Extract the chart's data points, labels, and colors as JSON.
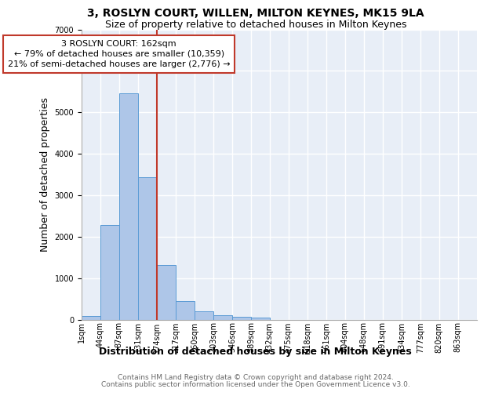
{
  "title": "3, ROSLYN COURT, WILLEN, MILTON KEYNES, MK15 9LA",
  "subtitle": "Size of property relative to detached houses in Milton Keynes",
  "xlabel": "Distribution of detached houses by size in Milton Keynes",
  "ylabel": "Number of detached properties",
  "footnote1": "Contains HM Land Registry data © Crown copyright and database right 2024.",
  "footnote2": "Contains public sector information licensed under the Open Government Licence v3.0.",
  "bar_labels": [
    "1sqm",
    "44sqm",
    "87sqm",
    "131sqm",
    "174sqm",
    "217sqm",
    "260sqm",
    "303sqm",
    "346sqm",
    "389sqm",
    "432sqm",
    "475sqm",
    "518sqm",
    "561sqm",
    "604sqm",
    "648sqm",
    "691sqm",
    "734sqm",
    "777sqm",
    "820sqm",
    "863sqm"
  ],
  "bar_values": [
    80,
    2280,
    5450,
    3430,
    1310,
    450,
    190,
    100,
    65,
    40,
    0,
    0,
    0,
    0,
    0,
    0,
    0,
    0,
    0,
    0,
    0
  ],
  "bar_color": "#aec6e8",
  "bar_edge_color": "#5b9bd5",
  "pct_smaller": 79,
  "n_smaller": "10,359",
  "pct_larger": 21,
  "n_larger": "2,776",
  "vline_x": 4.0,
  "vline_color": "#c0392b",
  "annotation_box_color": "#c0392b",
  "ylim": [
    0,
    7000
  ],
  "yticks": [
    0,
    1000,
    2000,
    3000,
    4000,
    5000,
    6000,
    7000
  ],
  "background_color": "#e8eef7",
  "grid_color": "#ffffff",
  "title_fontsize": 10,
  "subtitle_fontsize": 9,
  "axis_label_fontsize": 9,
  "tick_fontsize": 7,
  "annotation_fontsize": 8,
  "footnote_fontsize": 6.5
}
